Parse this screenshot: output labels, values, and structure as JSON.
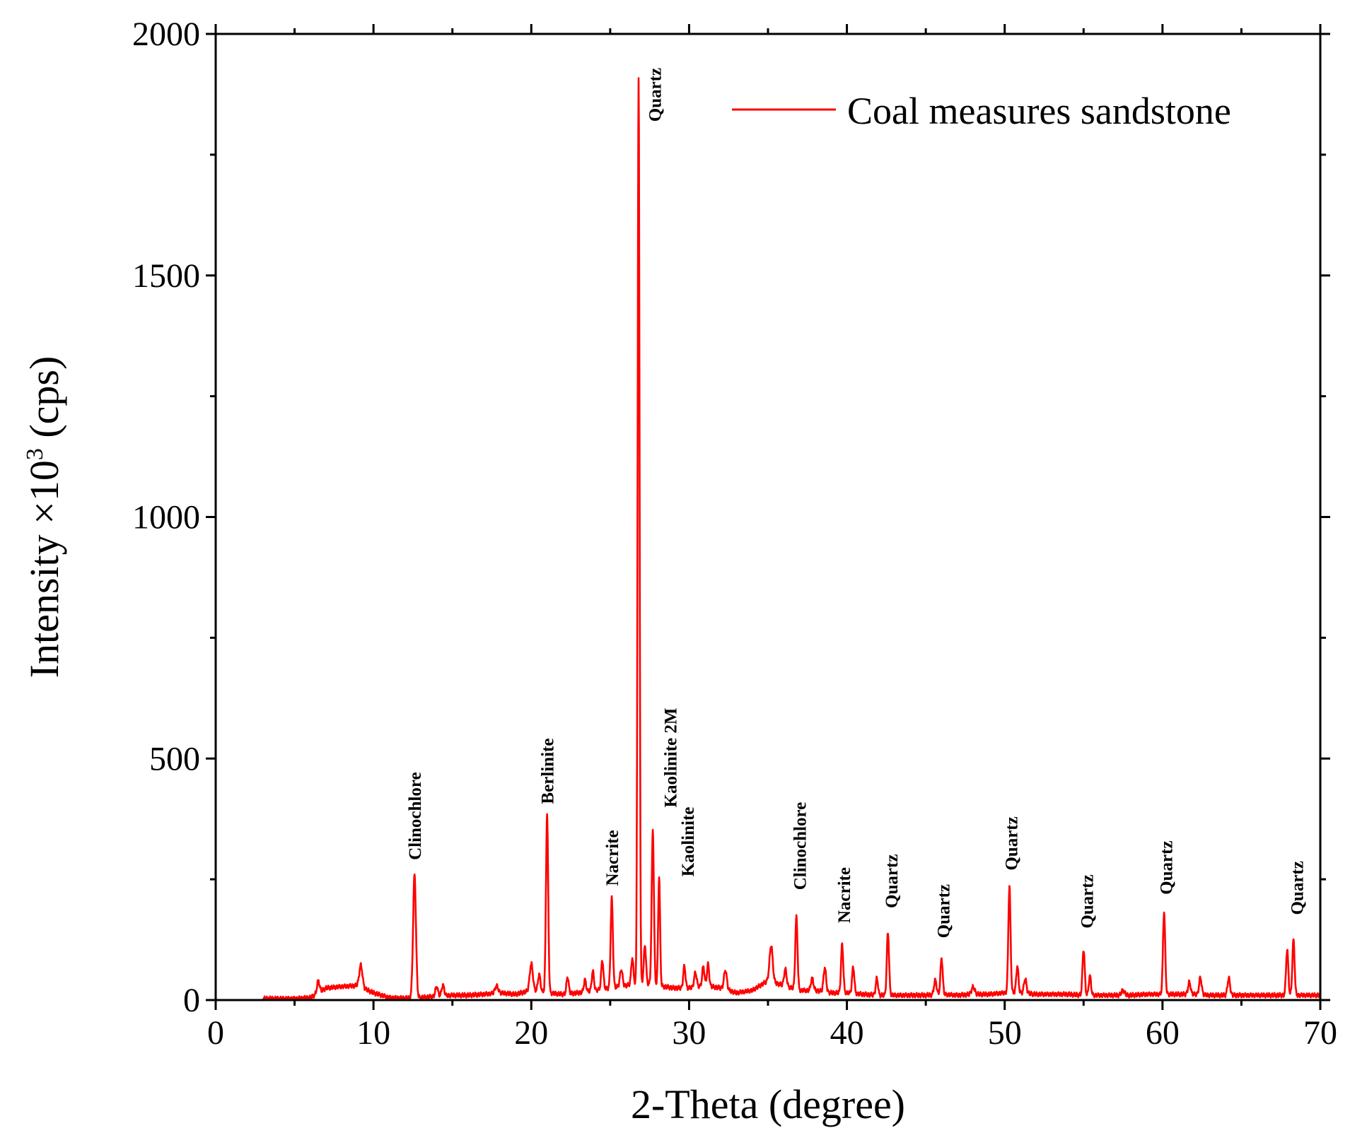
{
  "chart_data": {
    "type": "line",
    "title": "",
    "xlabel": "2-Theta (degree)",
    "ylabel_main": "Intensity ×10",
    "ylabel_exponent": "3",
    "ylabel_unit": " (cps)",
    "xlim": [
      0,
      70
    ],
    "ylim": [
      0,
      2000
    ],
    "x_ticks": [
      "0",
      "10",
      "20",
      "30",
      "40",
      "50",
      "60",
      "70"
    ],
    "y_ticks": [
      "0",
      "500",
      "1000",
      "1500",
      "2000"
    ],
    "legend": {
      "label": "Coal measures sandstone",
      "position": "top-right"
    },
    "color": "#ff0000",
    "series": [
      {
        "name": "Coal measures sandstone",
        "baseline": [
          [
            3,
            3
          ],
          [
            5,
            3
          ],
          [
            6,
            5
          ],
          [
            7,
            25
          ],
          [
            8,
            28
          ],
          [
            9,
            30
          ],
          [
            10,
            15
          ],
          [
            11,
            5
          ],
          [
            12,
            4
          ],
          [
            13,
            5
          ],
          [
            14,
            8
          ],
          [
            15,
            10
          ],
          [
            16,
            10
          ],
          [
            17,
            12
          ],
          [
            18,
            15
          ],
          [
            19,
            12
          ],
          [
            20,
            20
          ],
          [
            21,
            15
          ],
          [
            22,
            12
          ],
          [
            23,
            15
          ],
          [
            24,
            20
          ],
          [
            25,
            25
          ],
          [
            26,
            30
          ],
          [
            27,
            35
          ],
          [
            28,
            30
          ],
          [
            29,
            25
          ],
          [
            30,
            25
          ],
          [
            31,
            30
          ],
          [
            32,
            25
          ],
          [
            33,
            15
          ],
          [
            34,
            20
          ],
          [
            35,
            40
          ],
          [
            36,
            30
          ],
          [
            37,
            20
          ],
          [
            38,
            20
          ],
          [
            39,
            15
          ],
          [
            40,
            15
          ],
          [
            41,
            12
          ],
          [
            42,
            10
          ],
          [
            43,
            10
          ],
          [
            44,
            10
          ],
          [
            45,
            10
          ],
          [
            46,
            12
          ],
          [
            47,
            10
          ],
          [
            48,
            12
          ],
          [
            49,
            12
          ],
          [
            50,
            15
          ],
          [
            51,
            15
          ],
          [
            52,
            12
          ],
          [
            53,
            12
          ],
          [
            54,
            12
          ],
          [
            55,
            10
          ],
          [
            56,
            10
          ],
          [
            57,
            10
          ],
          [
            58,
            10
          ],
          [
            59,
            12
          ],
          [
            60,
            12
          ],
          [
            61,
            12
          ],
          [
            62,
            12
          ],
          [
            63,
            10
          ],
          [
            64,
            10
          ],
          [
            65,
            10
          ],
          [
            66,
            10
          ],
          [
            67,
            10
          ],
          [
            68,
            10
          ],
          [
            69,
            10
          ],
          [
            70,
            10
          ]
        ],
        "peaks": [
          [
            6.5,
            25,
            0.08
          ],
          [
            9.2,
            45,
            0.1
          ],
          [
            12.6,
            255,
            0.09
          ],
          [
            14.0,
            20,
            0.08
          ],
          [
            14.4,
            22,
            0.08
          ],
          [
            17.8,
            15,
            0.1
          ],
          [
            20.0,
            55,
            0.1
          ],
          [
            20.5,
            35,
            0.08
          ],
          [
            21.0,
            370,
            0.07
          ],
          [
            22.3,
            35,
            0.07
          ],
          [
            23.4,
            25,
            0.07
          ],
          [
            23.9,
            40,
            0.07
          ],
          [
            24.5,
            60,
            0.07
          ],
          [
            25.1,
            185,
            0.07
          ],
          [
            25.7,
            35,
            0.08
          ],
          [
            26.4,
            55,
            0.07
          ],
          [
            26.8,
            1870,
            0.06
          ],
          [
            27.2,
            80,
            0.07
          ],
          [
            27.7,
            320,
            0.07
          ],
          [
            28.1,
            225,
            0.06
          ],
          [
            29.7,
            45,
            0.07
          ],
          [
            30.4,
            30,
            0.08
          ],
          [
            30.9,
            40,
            0.07
          ],
          [
            31.2,
            45,
            0.07
          ],
          [
            32.3,
            40,
            0.09
          ],
          [
            35.2,
            75,
            0.1
          ],
          [
            36.1,
            35,
            0.08
          ],
          [
            36.8,
            150,
            0.07
          ],
          [
            37.8,
            25,
            0.08
          ],
          [
            38.6,
            50,
            0.08
          ],
          [
            39.7,
            100,
            0.07
          ],
          [
            40.4,
            55,
            0.07
          ],
          [
            41.9,
            35,
            0.07
          ],
          [
            42.6,
            130,
            0.07
          ],
          [
            45.6,
            30,
            0.08
          ],
          [
            46.0,
            75,
            0.07
          ],
          [
            48.0,
            15,
            0.1
          ],
          [
            50.3,
            220,
            0.07
          ],
          [
            50.8,
            55,
            0.07
          ],
          [
            51.3,
            30,
            0.08
          ],
          [
            55.0,
            95,
            0.07
          ],
          [
            55.4,
            40,
            0.07
          ],
          [
            57.5,
            10,
            0.1
          ],
          [
            60.1,
            170,
            0.07
          ],
          [
            61.7,
            25,
            0.08
          ],
          [
            62.4,
            35,
            0.08
          ],
          [
            64.2,
            35,
            0.08
          ],
          [
            67.9,
            95,
            0.07
          ],
          [
            68.3,
            115,
            0.07
          ]
        ]
      }
    ],
    "peak_labels": [
      {
        "text": "Clinochlore",
        "x": 12.6,
        "y_top": 472
      },
      {
        "text": "Berlinite",
        "x": 21.0,
        "y_top": 542
      },
      {
        "text": "Nacrite",
        "x": 25.1,
        "y_top": 352
      },
      {
        "text": "Quartz",
        "x": 27.8,
        "y_top": 1930
      },
      {
        "text": "Kaolinite 2M",
        "x": 28.8,
        "y_top": 605
      },
      {
        "text": "Kaolinite",
        "x": 29.9,
        "y_top": 400
      },
      {
        "text": "Clinochlore",
        "x": 37.0,
        "y_top": 410
      },
      {
        "text": "Nacrite",
        "x": 39.8,
        "y_top": 275
      },
      {
        "text": "Quartz",
        "x": 42.8,
        "y_top": 302
      },
      {
        "text": "Quartz",
        "x": 46.1,
        "y_top": 240
      },
      {
        "text": "Quartz",
        "x": 50.4,
        "y_top": 380
      },
      {
        "text": "Quartz",
        "x": 55.2,
        "y_top": 260
      },
      {
        "text": "Quartz",
        "x": 60.2,
        "y_top": 330
      },
      {
        "text": "Quartz",
        "x": 68.5,
        "y_top": 288
      }
    ]
  }
}
